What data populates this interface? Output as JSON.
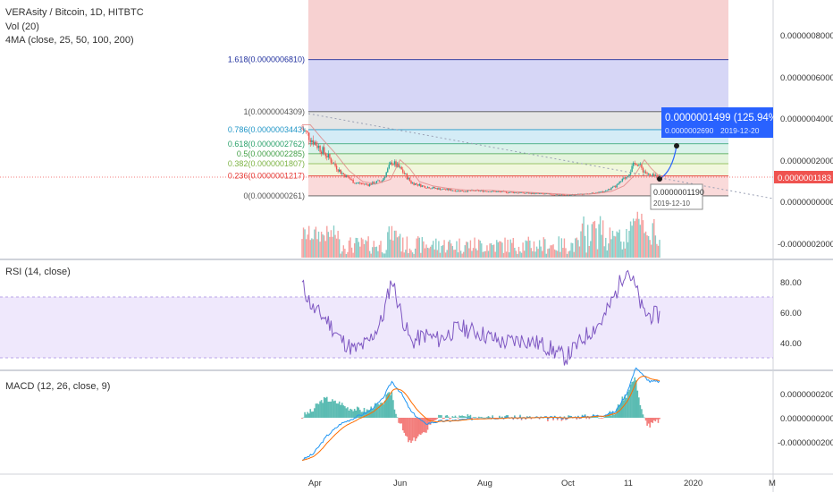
{
  "header": {
    "symbol_title": "VERAsity / Bitcoin, 1D, HITBTC",
    "vol_label": "Vol (20)",
    "ma_label": "4MA (close, 25, 50, 100, 200)"
  },
  "rsi_label": "RSI (14, close)",
  "macd_label": "MACD (12, 26, close, 9)",
  "price_axis": {
    "ticks": [
      "0.0000008000",
      "0.0000006000",
      "0.0000004000",
      "0.0000002000",
      "0.0000000000",
      "-0.0000002000"
    ],
    "last_price": "0.0000001183"
  },
  "rsi_axis": {
    "ticks": [
      "80.00",
      "60.00",
      "40.00"
    ]
  },
  "macd_axis": {
    "ticks": [
      "0.0000000200",
      "0.0000000000",
      "-0.0000000200"
    ]
  },
  "time_axis": {
    "ticks": [
      "Apr",
      "Jun",
      "Aug",
      "Oct",
      "11",
      "2020",
      "M"
    ]
  },
  "fib_levels": [
    {
      "label": "1.618(0.0000006810)",
      "color": "#1f2f9e"
    },
    {
      "label": "1(0.0000004309)",
      "color": "#555555"
    },
    {
      "label": "0.786(0.0000003443)",
      "color": "#2196c7"
    },
    {
      "label": "0.618(0.0000002762)",
      "color": "#2aa16a"
    },
    {
      "label": "0.5(0.0000002285)",
      "color": "#43a047"
    },
    {
      "label": "0.382(0.0000001807)",
      "color": "#7cb342"
    },
    {
      "label": "0.236(0.0000001217)",
      "color": "#e53935"
    },
    {
      "label": "0(0.0000000261)",
      "color": "#555555"
    }
  ],
  "projection": {
    "value": "0.0000001499 (125.94%) in",
    "sub_value": "0.0000002690",
    "sub_date": "2019-12-20"
  },
  "low_marker": {
    "price": "0.0000001190",
    "date": "2019-12-10"
  },
  "colors": {
    "up": "#26a69a",
    "down": "#ef5350",
    "rsi": "#7e57c2",
    "macd": "#2196f3",
    "signal": "#ff6d00",
    "callout": "#2962ff"
  },
  "chart_data": {
    "type": "candlestick",
    "symbol": "VERAsity / Bitcoin, 1D, HITBTC",
    "x_range": [
      "2019-03-28",
      "2019-12-12"
    ],
    "price_ylim": [
      -2.9e-07,
      9.85e-07
    ],
    "price_series": {
      "dates": [
        "2019-03-28",
        "2019-04-05",
        "2019-04-15",
        "2019-04-25",
        "2019-05-05",
        "2019-05-15",
        "2019-05-25",
        "2019-06-01",
        "2019-06-08",
        "2019-06-15",
        "2019-06-25",
        "2019-07-05",
        "2019-07-20",
        "2019-08-05",
        "2019-08-20",
        "2019-09-05",
        "2019-09-20",
        "2019-10-05",
        "2019-10-20",
        "2019-11-01",
        "2019-11-10",
        "2019-11-18",
        "2019-11-25",
        "2019-11-30",
        "2019-12-05",
        "2019-12-10"
      ],
      "close": [
        3.5e-07,
        2.9e-07,
        2.2e-07,
        1.4e-07,
        9e-08,
        8e-08,
        1e-07,
        1.9e-07,
        1.5e-07,
        9e-08,
        7e-08,
        6e-08,
        5e-08,
        5e-08,
        4.5e-08,
        4e-08,
        3.5e-08,
        3e-08,
        3.5e-08,
        4.5e-08,
        7e-08,
        1.2e-07,
        1.9e-07,
        1.5e-07,
        1.2e-07,
        1.2e-07
      ]
    },
    "rsi_ylim": [
      20,
      95
    ],
    "rsi_band": [
      30,
      70
    ],
    "rsi_values": [
      78,
      62,
      55,
      42,
      35,
      40,
      55,
      82,
      58,
      40,
      45,
      42,
      50,
      46,
      40,
      42,
      38,
      30,
      45,
      55,
      72,
      90,
      75,
      60,
      58,
      58
    ],
    "macd_ylim": [
      -4.2e-08,
      4.2e-08
    ],
    "macd_values": [
      -3.5e-08,
      -3e-08,
      -1.5e-08,
      -5e-09,
      0.0,
      5e-09,
      1.5e-08,
      3e-08,
      2e-08,
      5e-09,
      -5e-09,
      -3e-09,
      -2e-09,
      0.0,
      0.0,
      0.0,
      0.0,
      0.0,
      1e-09,
      2e-09,
      5e-09,
      2e-08,
      4.2e-08,
      3.5e-08,
      3e-08,
      3e-08
    ],
    "fib_prices": [
      6.81e-07,
      4.309e-07,
      3.443e-07,
      2.762e-07,
      2.285e-07,
      1.807e-07,
      1.217e-07,
      2.61e-08
    ],
    "last_price": 1.183e-07
  }
}
